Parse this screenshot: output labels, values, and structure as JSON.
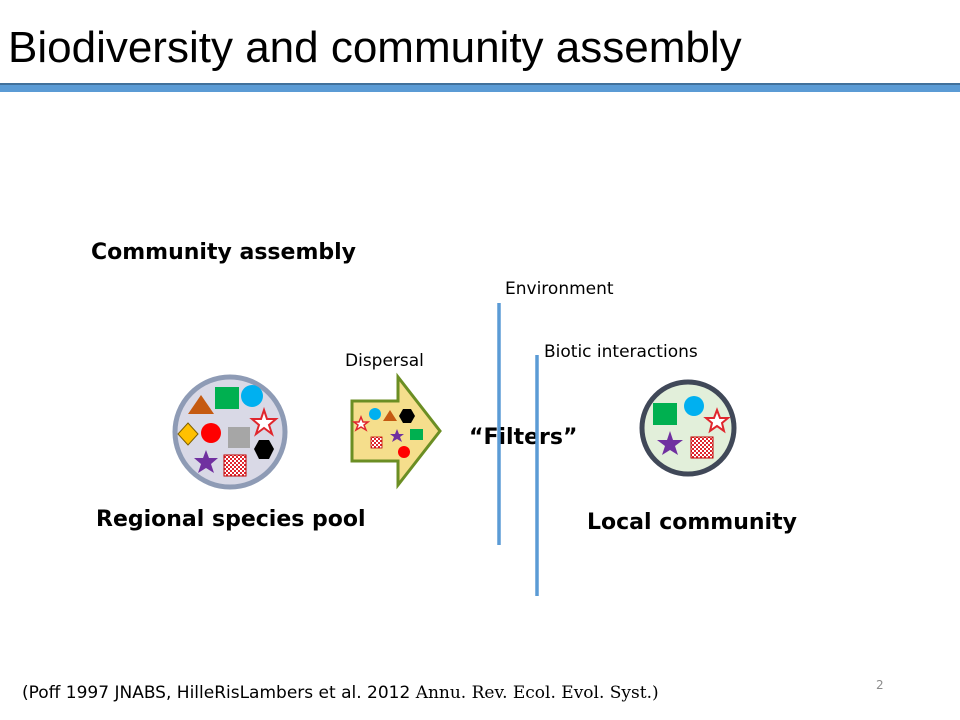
{
  "slide": {
    "title": "Biodiversity and community assembly",
    "page_number": "2"
  },
  "diagram": {
    "section_heading": "Community assembly",
    "labels": {
      "environment": "Environment",
      "biotic_interactions": "Biotic interactions",
      "dispersal": "Dispersal",
      "filters": "“Filters”",
      "regional_pool": "Regional species pool",
      "local_community": "Local community"
    }
  },
  "citation": {
    "part1": "(Poff 1997 JNABS, HilleRisLambers et al. 2012 ",
    "part2": "Annu. Rev. Ecol. Evol. Syst.",
    "part3": ")"
  },
  "colors": {
    "accent_blue": "#5b9bd5",
    "arrow_fill": "#f5de8c",
    "arrow_stroke": "#6b8e23",
    "pool_fill": "#d9d9e6",
    "pool_stroke": "#8e9bb5",
    "local_fill": "#e2efda",
    "local_stroke": "#404858"
  }
}
